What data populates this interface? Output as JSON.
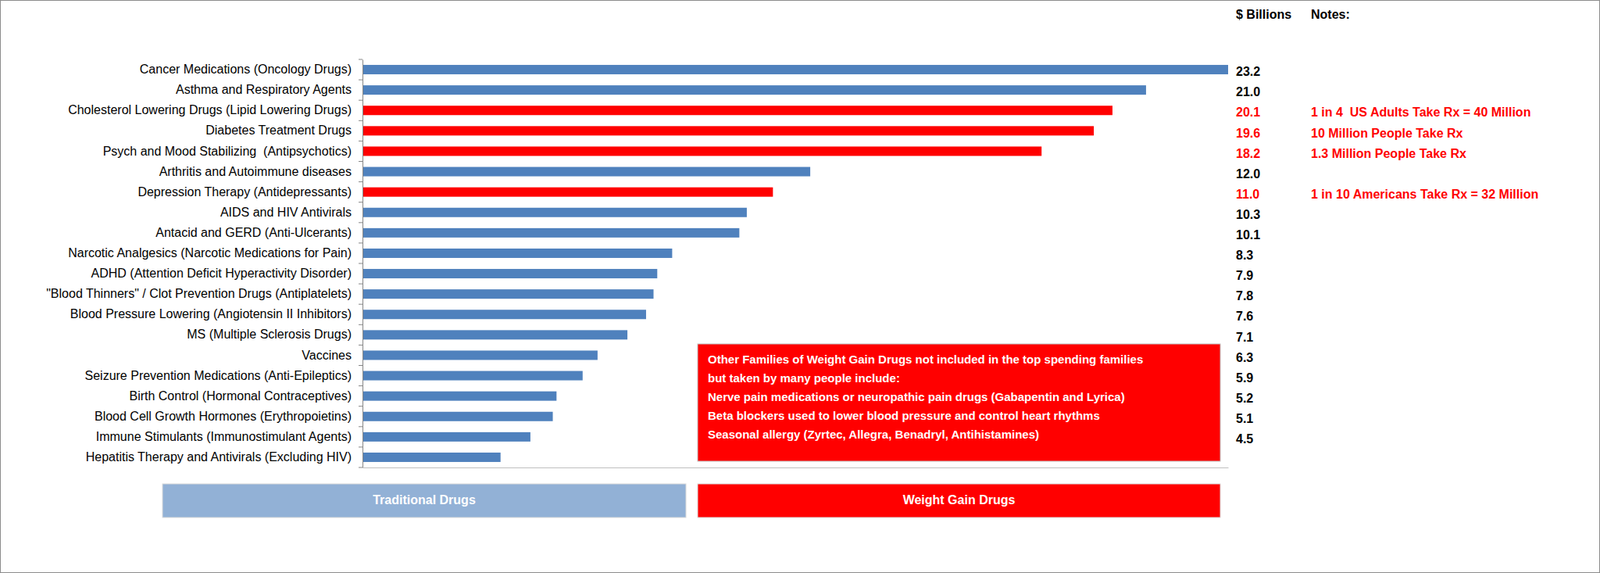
{
  "chart_data": {
    "type": "bar",
    "orientation": "horizontal",
    "categories": [
      "Cancer Medications (Oncology Drugs)",
      "Asthma and Respiratory Agents",
      "Cholesterol Lowering Drugs (Lipid Lowering Drugs)",
      "Diabetes Treatment Drugs",
      "Psych and Mood Stabilizing  (Antipsychotics)",
      "Arthritis and Autoimmune diseases",
      "Depression Therapy (Antidepressants)",
      "AIDS and HIV Antivirals",
      "Antacid and GERD (Anti-Ulcerants)",
      "Narcotic Analgesics (Narcotic Medications for Pain)",
      "ADHD (Attention Deficit Hyperactivity Disorder)",
      "\"Blood Thinners\" / Clot Prevention Drugs (Antiplatelets)",
      "Blood Pressure Lowering (Angiotensin II Inhibitors)",
      "MS (Multiple Sclerosis Drugs)",
      "Vaccines",
      "Seizure Prevention Medications (Anti-Epileptics)",
      "Birth Control (Hormonal Contraceptives)",
      "Blood Cell Growth Hormones (Erythropoietins)",
      "Immune Stimulants (Immunostimulant Agents)",
      "Hepatitis Therapy and Antivirals (Excluding HIV)"
    ],
    "series": [
      {
        "name": "Traditional Drugs",
        "color": "#4F81BD",
        "values": [
          23.2,
          21.0,
          null,
          null,
          null,
          12.0,
          null,
          10.3,
          10.1,
          8.3,
          7.9,
          7.8,
          7.6,
          7.1,
          6.3,
          5.9,
          5.2,
          5.1,
          4.5,
          3.7
        ],
        "value_labels": [
          "23.2",
          "21.0",
          null,
          null,
          null,
          "12.0",
          null,
          "10.3",
          "10.1",
          "8.3",
          "7.9",
          "7.8",
          "7.6",
          "7.1",
          "6.3",
          "5.9",
          "5.2",
          "5.1",
          "4.5",
          null
        ]
      },
      {
        "name": "Weight Gain Drugs",
        "color": "#FF0000",
        "values": [
          null,
          null,
          20.1,
          19.6,
          18.2,
          null,
          11.0,
          null,
          null,
          null,
          null,
          null,
          null,
          null,
          null,
          null,
          null,
          null,
          null,
          null
        ],
        "value_labels": [
          null,
          null,
          "20.1",
          "19.6",
          "18.2",
          null,
          "11.0",
          null,
          null,
          null,
          null,
          null,
          null,
          null,
          null,
          null,
          null,
          null,
          null,
          null
        ]
      }
    ],
    "xlim": [
      0,
      23.2
    ],
    "xticks": [],
    "tick_labels": "y",
    "grid": false,
    "data_labels": true,
    "legend": "bottom",
    "value_label_title": "$ Billions",
    "notes_title": "Notes:",
    "notes": [
      null,
      null,
      "1 in 4  US Adults Take Rx = 40 Million",
      "10 Million People Take Rx",
      "1.3 Million People Take Rx",
      null,
      "1 in 10 Americans Take Rx = 32 Million",
      null,
      null,
      null,
      null,
      null,
      null,
      null,
      null,
      null,
      null,
      null,
      null,
      null
    ],
    "annotation": [
      "Other Families of Weight Gain Drugs not included in the top spending families",
      "but taken by many people include:",
      "Nerve pain medications or neuropathic pain drugs (Gabapentin and Lyrica)",
      "Beta blockers used to lower blood pressure and control heart rhythms",
      "Seasonal allergy (Zyrtec, Allegra, Benadryl, Antihistamines)"
    ]
  }
}
